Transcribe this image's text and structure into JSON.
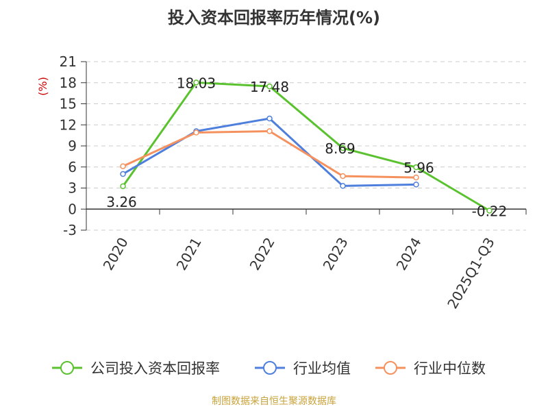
{
  "source_note": "制图数据来自恒生聚源数据库",
  "chart_data": {
    "type": "line",
    "title": "投入资本回报率历年情况(%)",
    "ylabel": "(%)",
    "ylim": [
      -3,
      21
    ],
    "yticks": [
      -3,
      0,
      3,
      6,
      9,
      12,
      15,
      18,
      21
    ],
    "categories": [
      "2020",
      "2021",
      "2022",
      "2023",
      "2024",
      "2025Q1-Q3"
    ],
    "grid": true,
    "legend_position": "bottom",
    "series": [
      {
        "name": "公司投入资本回报率",
        "color": "#5ac22e",
        "values": [
          3.26,
          18.03,
          17.48,
          8.69,
          5.96,
          -0.22
        ],
        "labels": [
          "3.26",
          "18.03",
          "17.48",
          "8.69",
          "5.96",
          "-0.22"
        ]
      },
      {
        "name": "行业均值",
        "color": "#4e7fdc",
        "values": [
          5.0,
          11.1,
          12.9,
          3.3,
          3.5,
          null
        ]
      },
      {
        "name": "行业中位数",
        "color": "#f5915e",
        "values": [
          6.1,
          10.9,
          11.1,
          4.7,
          4.5,
          null
        ]
      }
    ]
  }
}
